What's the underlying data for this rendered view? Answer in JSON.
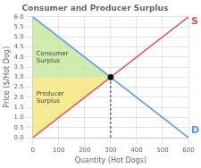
{
  "chart_data": {
    "type": "line",
    "title": "Consumer and Producer Surplus",
    "xlabel": "Quantity (Hot Dogs)",
    "ylabel": "Price ($/Hot Dog)",
    "xlim": [
      0,
      600
    ],
    "ylim": [
      0,
      6
    ],
    "xticks": [
      0,
      100,
      200,
      300,
      400,
      500,
      600
    ],
    "yticks": [
      {
        "value": 0.0,
        "label": "0.0"
      },
      0.5,
      {
        "value": 1.0,
        "label": "1.0"
      },
      1.5,
      {
        "value": 2.0,
        "label": "2.0"
      },
      2.5,
      {
        "value": 3.0,
        "label": "3.0"
      },
      3.5,
      {
        "value": 4.0,
        "label": "4.0"
      },
      4.5,
      {
        "value": 5.0,
        "label": "5.0"
      },
      5.5,
      {
        "value": 6.0,
        "label": "6.0"
      }
    ],
    "grid": true,
    "series": [
      {
        "type": "area",
        "label": "Consumer\nSurplus",
        "color": "#c8e8a0",
        "x": [
          0,
          0,
          300
        ],
        "values": [
          6,
          3,
          3
        ]
      },
      {
        "type": "area",
        "label": "Producer\nSurplus",
        "color": "#f5e880",
        "x": [
          0,
          0,
          300
        ],
        "values": [
          0,
          3,
          3
        ]
      },
      {
        "type": "line",
        "label": "S",
        "color": "#e05050",
        "x": [
          0,
          600
        ],
        "values": [
          0,
          6
        ]
      },
      {
        "type": "line",
        "label": "D",
        "color": "#5599ee",
        "x": [
          0,
          600
        ],
        "values": [
          6,
          0
        ]
      },
      {
        "type": "line",
        "color": "#333333",
        "line_style": "dashed",
        "x": [
          300,
          300
        ],
        "values": [
          0,
          3
        ]
      },
      {
        "type": "scatter",
        "color": "#111111",
        "marker": "circle",
        "x": [
          300
        ],
        "values": [
          3
        ]
      }
    ]
  }
}
